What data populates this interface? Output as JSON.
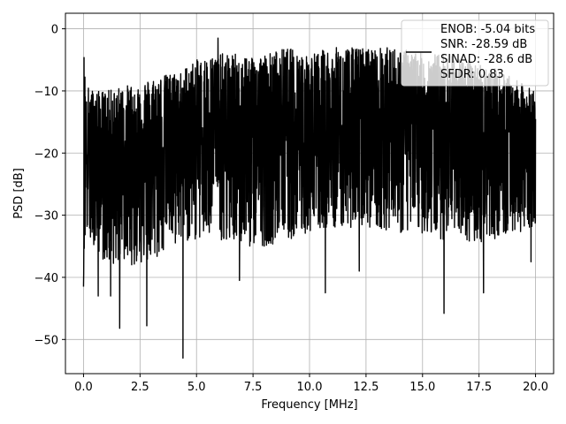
{
  "chart_data": {
    "type": "line",
    "title": "",
    "xlabel": "Frequency [MHz]",
    "ylabel": "PSD [dB]",
    "xlim": [
      -0.8,
      20.8
    ],
    "ylim": [
      -55.5,
      2.5
    ],
    "x_ticks": [
      0.0,
      2.5,
      5.0,
      7.5,
      10.0,
      12.5,
      15.0,
      17.5,
      20.0
    ],
    "x_tick_labels": [
      "0.0",
      "2.5",
      "5.0",
      "7.5",
      "10.0",
      "12.5",
      "15.0",
      "17.5",
      "20.0"
    ],
    "y_ticks": [
      0,
      -10,
      -20,
      -30,
      -40,
      -50
    ],
    "y_tick_labels": [
      "0",
      "−10",
      "−20",
      "−30",
      "−40",
      "−50"
    ],
    "grid": true,
    "legend_placement": "top-right",
    "legend_lines": [
      "ENOB: -5.04 bits",
      "SNR: -28.59 dB",
      "SINAD: -28.6 dB",
      "SFDR: 0.83"
    ],
    "series": [
      {
        "color": "#000000",
        "envelope": {
          "x": [
            0.0,
            0.1,
            0.5,
            1.0,
            2.0,
            3.0,
            4.0,
            5.0,
            6.0,
            7.0,
            8.0,
            9.0,
            10.0,
            11.0,
            12.0,
            13.0,
            14.0,
            15.0,
            16.0,
            17.0,
            18.0,
            19.0,
            20.0
          ],
          "upper": [
            -2,
            -9,
            -10,
            -10,
            -9,
            -8,
            -7,
            -5,
            -4,
            -4,
            -4,
            -3,
            -4,
            -3,
            -3,
            -3,
            -3,
            -4,
            -4,
            -5,
            -6,
            -8,
            -10
          ],
          "lower": [
            -40,
            -33,
            -35,
            -38,
            -38,
            -38,
            -35,
            -34,
            -34,
            -35,
            -35,
            -34,
            -33,
            -32,
            -32,
            -32,
            -33,
            -33,
            -34,
            -35,
            -34,
            -33,
            -32
          ],
          "center": [
            -18,
            -17,
            -18,
            -19,
            -18,
            -17,
            -17,
            -16,
            -15,
            -15,
            -15,
            -15,
            -15,
            -15,
            -14,
            -14,
            -14,
            -15,
            -15,
            -16,
            -16,
            -17,
            -18
          ]
        },
        "notable_points": [
          {
            "x": 0.0,
            "y": -2.2
          },
          {
            "x": 0.0,
            "y": -41.5
          },
          {
            "x": 0.65,
            "y": -43.0
          },
          {
            "x": 1.2,
            "y": -43.0
          },
          {
            "x": 1.6,
            "y": -48.2
          },
          {
            "x": 2.8,
            "y": -47.8
          },
          {
            "x": 4.4,
            "y": -53.0
          },
          {
            "x": 5.95,
            "y": -1.5
          },
          {
            "x": 6.9,
            "y": -40.5
          },
          {
            "x": 10.7,
            "y": -42.5
          },
          {
            "x": 12.2,
            "y": -39.0
          },
          {
            "x": 15.95,
            "y": -45.8
          },
          {
            "x": 17.7,
            "y": -42.5
          },
          {
            "x": 19.8,
            "y": -37.5
          }
        ]
      }
    ]
  }
}
